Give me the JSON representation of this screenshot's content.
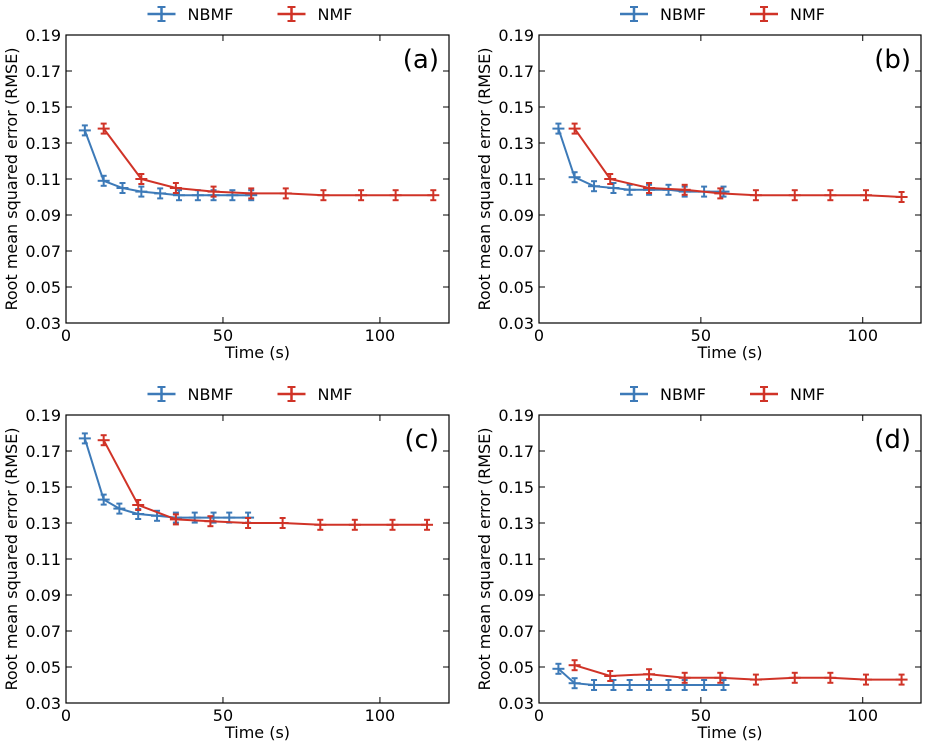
{
  "colors": {
    "nbmf": "#3d7ab8",
    "nmf": "#d03327"
  },
  "chart_data": [
    {
      "type": "line",
      "panel_label": "(a)",
      "xlabel": "Time (s)",
      "ylabel": "Root mean squared error (RMSE)",
      "xlim": [
        0,
        122
      ],
      "ylim": [
        0.03,
        0.19
      ],
      "xticks": [
        0,
        50,
        100
      ],
      "yticks": [
        0.03,
        0.05,
        0.07,
        0.09,
        0.11,
        0.13,
        0.15,
        0.17,
        0.19
      ],
      "ytick_labels": [
        "0.03",
        "0.05",
        "0.07",
        "0.09",
        "0.11",
        "0.13",
        "0.15",
        "0.17",
        "0.19"
      ],
      "legend": [
        "NBMF",
        "NMF"
      ],
      "series": [
        {
          "name": "NBMF",
          "x": [
            6,
            12,
            18,
            24,
            30,
            36,
            42,
            47,
            53,
            59
          ],
          "y": [
            0.137,
            0.109,
            0.105,
            0.103,
            0.102,
            0.101,
            0.101,
            0.101,
            0.101,
            0.101
          ]
        },
        {
          "name": "NMF",
          "x": [
            12,
            24,
            35,
            47,
            59,
            70,
            82,
            94,
            105,
            117
          ],
          "y": [
            0.138,
            0.11,
            0.105,
            0.103,
            0.102,
            0.102,
            0.101,
            0.101,
            0.101,
            0.101
          ]
        }
      ]
    },
    {
      "type": "line",
      "panel_label": "(b)",
      "xlabel": "Time (s)",
      "ylabel": "Root mean squared error (RMSE)",
      "xlim": [
        0,
        118
      ],
      "ylim": [
        0.03,
        0.19
      ],
      "xticks": [
        0,
        50,
        100
      ],
      "yticks": [
        0.03,
        0.05,
        0.07,
        0.09,
        0.11,
        0.13,
        0.15,
        0.17,
        0.19
      ],
      "ytick_labels": [
        "0.03",
        "0.05",
        "0.07",
        "0.09",
        "0.11",
        "0.13",
        "0.15",
        "0.17",
        "0.19"
      ],
      "legend": [
        "NBMF",
        "NMF"
      ],
      "series": [
        {
          "name": "NBMF",
          "x": [
            6,
            11,
            17,
            23,
            28,
            34,
            40,
            45,
            51,
            57
          ],
          "y": [
            0.138,
            0.111,
            0.106,
            0.105,
            0.104,
            0.104,
            0.104,
            0.103,
            0.103,
            0.103
          ]
        },
        {
          "name": "NMF",
          "x": [
            11,
            22,
            34,
            45,
            56,
            67,
            79,
            90,
            101,
            112
          ],
          "y": [
            0.138,
            0.11,
            0.105,
            0.104,
            0.102,
            0.101,
            0.101,
            0.101,
            0.101,
            0.1
          ]
        }
      ]
    },
    {
      "type": "line",
      "panel_label": "(c)",
      "xlabel": "Time (s)",
      "ylabel": "Root mean squared error (RMSE)",
      "xlim": [
        0,
        122
      ],
      "ylim": [
        0.03,
        0.19
      ],
      "xticks": [
        0,
        50,
        100
      ],
      "yticks": [
        0.03,
        0.05,
        0.07,
        0.09,
        0.11,
        0.13,
        0.15,
        0.17,
        0.19
      ],
      "ytick_labels": [
        "0.03",
        "0.05",
        "0.07",
        "0.09",
        "0.11",
        "0.13",
        "0.15",
        "0.17",
        "0.19"
      ],
      "legend": [
        "NBMF",
        "NMF"
      ],
      "series": [
        {
          "name": "NBMF",
          "x": [
            6,
            12,
            17,
            23,
            29,
            35,
            41,
            47,
            52,
            58
          ],
          "y": [
            0.177,
            0.143,
            0.138,
            0.135,
            0.134,
            0.133,
            0.133,
            0.133,
            0.133,
            0.133
          ]
        },
        {
          "name": "NMF",
          "x": [
            12,
            23,
            35,
            46,
            58,
            69,
            81,
            92,
            104,
            115
          ],
          "y": [
            0.176,
            0.14,
            0.132,
            0.131,
            0.13,
            0.13,
            0.129,
            0.129,
            0.129,
            0.129
          ]
        }
      ]
    },
    {
      "type": "line",
      "panel_label": "(d)",
      "xlabel": "Time (s)",
      "ylabel": "Root mean squared error (RMSE)",
      "xlim": [
        0,
        118
      ],
      "ylim": [
        0.03,
        0.19
      ],
      "xticks": [
        0,
        50,
        100
      ],
      "yticks": [
        0.03,
        0.05,
        0.07,
        0.09,
        0.11,
        0.13,
        0.15,
        0.17,
        0.19
      ],
      "ytick_labels": [
        "0.03",
        "0.05",
        "0.07",
        "0.09",
        "0.11",
        "0.13",
        "0.15",
        "0.17",
        "0.19"
      ],
      "legend": [
        "NBMF",
        "NMF"
      ],
      "series": [
        {
          "name": "NBMF",
          "x": [
            6,
            11,
            17,
            23,
            28,
            34,
            40,
            45,
            51,
            57
          ],
          "y": [
            0.049,
            0.041,
            0.04,
            0.04,
            0.04,
            0.04,
            0.04,
            0.04,
            0.04,
            0.04
          ]
        },
        {
          "name": "NMF",
          "x": [
            11,
            22,
            34,
            45,
            56,
            67,
            79,
            90,
            101,
            112
          ],
          "y": [
            0.051,
            0.045,
            0.046,
            0.044,
            0.044,
            0.043,
            0.044,
            0.044,
            0.043,
            0.043
          ]
        }
      ]
    }
  ]
}
